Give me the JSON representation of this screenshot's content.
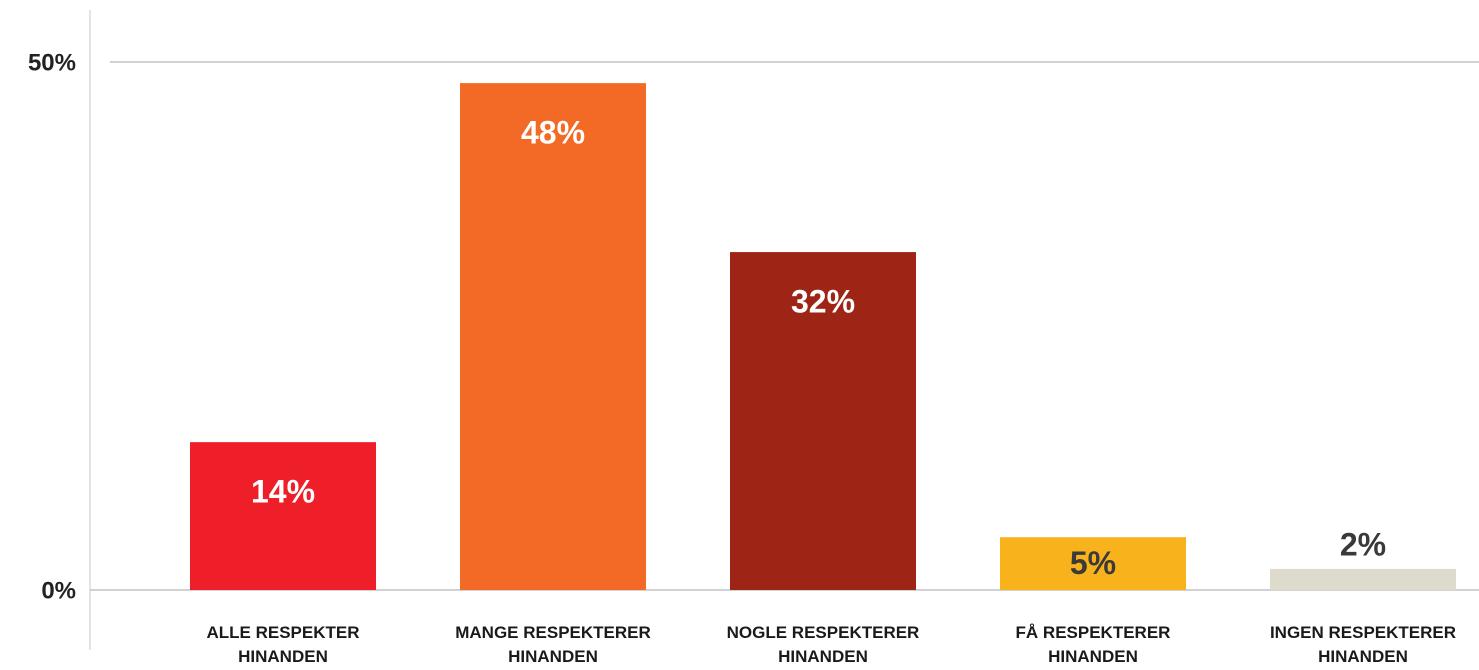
{
  "chart_data": {
    "type": "bar",
    "categories": [
      "ALLE RESPEKTER HINANDEN",
      "MANGE RESPEKTERER HINANDEN",
      "NOGLE RESPEKTERER HINANDEN",
      "FÅ RESPEKTERER HINANDEN",
      "INGEN RESPEKTERER HINANDEN"
    ],
    "values": [
      14,
      48,
      32,
      5,
      2
    ],
    "value_labels": [
      "14%",
      "48%",
      "32%",
      "5%",
      "2%"
    ],
    "colors": [
      "#ee1f28",
      "#f26a25",
      "#9e2515",
      "#f8b21b",
      "#dfdbcc"
    ],
    "label_colors": [
      "#ffffff",
      "#ffffff",
      "#ffffff",
      "#3a3a3a",
      "#3a3a3a"
    ],
    "ylim": [
      0,
      50
    ],
    "yticks": [
      {
        "value": 0,
        "label": "0%"
      },
      {
        "value": 50,
        "label": "50%"
      }
    ],
    "grid": true
  }
}
